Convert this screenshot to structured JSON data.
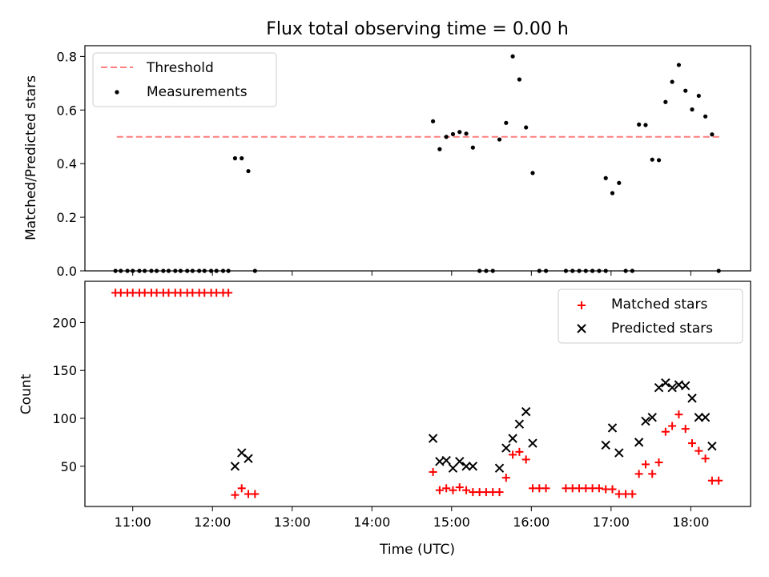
{
  "title": "Flux total observing time = 0.00 h",
  "chart_data": [
    {
      "type": "scatter",
      "ylabel": "Matched/Predicted stars",
      "xlabel": "",
      "xlim": [
        "10:24",
        "18:45"
      ],
      "ylim": [
        0,
        0.84
      ],
      "yticks": [
        0.0,
        0.2,
        0.4,
        0.6,
        0.8
      ],
      "legend_position": "top-left",
      "threshold": {
        "name": "Threshold",
        "value": 0.5,
        "x": [
          "10:48",
          "18:22"
        ],
        "color": "#ff7f7f",
        "style": "dashed"
      },
      "series": [
        {
          "name": "Measurements",
          "marker": "dot",
          "color": "#000000",
          "points": [
            [
              "10:47",
              0
            ],
            [
              "10:51",
              0
            ],
            [
              "10:56",
              0
            ],
            [
              "11:00",
              0
            ],
            [
              "11:05",
              0
            ],
            [
              "11:09",
              0
            ],
            [
              "11:14",
              0
            ],
            [
              "11:18",
              0
            ],
            [
              "11:23",
              0
            ],
            [
              "11:27",
              0
            ],
            [
              "11:32",
              0
            ],
            [
              "11:36",
              0
            ],
            [
              "11:41",
              0
            ],
            [
              "11:45",
              0
            ],
            [
              "11:50",
              0
            ],
            [
              "11:54",
              0
            ],
            [
              "11:59",
              0
            ],
            [
              "12:03",
              0
            ],
            [
              "12:08",
              0
            ],
            [
              "12:12",
              0
            ],
            [
              "12:17",
              0.42
            ],
            [
              "12:22",
              0.42
            ],
            [
              "12:27",
              0.372
            ],
            [
              "12:32",
              0
            ],
            [
              "14:46",
              0.558
            ],
            [
              "14:51",
              0.454
            ],
            [
              "14:56",
              0.5
            ],
            [
              "15:01",
              0.51
            ],
            [
              "15:06",
              0.518
            ],
            [
              "15:11",
              0.512
            ],
            [
              "15:16",
              0.46
            ],
            [
              "15:21",
              0
            ],
            [
              "15:26",
              0
            ],
            [
              "15:31",
              0
            ],
            [
              "15:36",
              0.49
            ],
            [
              "15:41",
              0.552
            ],
            [
              "15:46",
              0.8
            ],
            [
              "15:51",
              0.714
            ],
            [
              "15:56",
              0.535
            ],
            [
              "16:01",
              0.365
            ],
            [
              "16:06",
              0
            ],
            [
              "16:11",
              0
            ],
            [
              "16:26",
              0
            ],
            [
              "16:31",
              0
            ],
            [
              "16:36",
              0
            ],
            [
              "16:41",
              0
            ],
            [
              "16:46",
              0
            ],
            [
              "16:51",
              0
            ],
            [
              "16:56",
              0
            ],
            [
              "16:56",
              0.346
            ],
            [
              "17:01",
              0.29
            ],
            [
              "17:06",
              0.328
            ],
            [
              "17:11",
              0
            ],
            [
              "17:16",
              0
            ],
            [
              "17:21",
              0.546
            ],
            [
              "17:26",
              0.544
            ],
            [
              "17:31",
              0.415
            ],
            [
              "17:36",
              0.413
            ],
            [
              "17:41",
              0.63
            ],
            [
              "17:46",
              0.705
            ],
            [
              "17:51",
              0.768
            ],
            [
              "17:56",
              0.672
            ],
            [
              "18:01",
              0.602
            ],
            [
              "18:06",
              0.653
            ],
            [
              "18:11",
              0.576
            ],
            [
              "18:16",
              0.509
            ],
            [
              "18:21",
              0
            ]
          ]
        }
      ]
    },
    {
      "type": "scatter",
      "xlabel": "Time (UTC)",
      "ylabel": "Count",
      "xlim": [
        "10:24",
        "18:45"
      ],
      "ylim": [
        8,
        243
      ],
      "yticks": [
        50,
        100,
        150,
        200
      ],
      "xticks": [
        "11:00",
        "12:00",
        "13:00",
        "14:00",
        "15:00",
        "16:00",
        "17:00",
        "18:00"
      ],
      "legend_position": "top-right",
      "series": [
        {
          "name": "Matched stars",
          "marker": "plus",
          "color": "#ff0000",
          "points": [
            [
              "10:47",
              231
            ],
            [
              "10:51",
              231
            ],
            [
              "10:56",
              231
            ],
            [
              "11:00",
              231
            ],
            [
              "11:05",
              231
            ],
            [
              "11:09",
              231
            ],
            [
              "11:14",
              231
            ],
            [
              "11:18",
              231
            ],
            [
              "11:23",
              231
            ],
            [
              "11:27",
              231
            ],
            [
              "11:32",
              231
            ],
            [
              "11:36",
              231
            ],
            [
              "11:41",
              231
            ],
            [
              "11:45",
              231
            ],
            [
              "11:50",
              231
            ],
            [
              "11:54",
              231
            ],
            [
              "11:59",
              231
            ],
            [
              "12:03",
              231
            ],
            [
              "12:08",
              231
            ],
            [
              "12:12",
              231
            ],
            [
              "12:17",
              20
            ],
            [
              "12:22",
              27
            ],
            [
              "12:27",
              21
            ],
            [
              "12:32",
              21
            ],
            [
              "14:46",
              44
            ],
            [
              "14:51",
              25
            ],
            [
              "14:56",
              27
            ],
            [
              "15:01",
              25
            ],
            [
              "15:06",
              28
            ],
            [
              "15:11",
              25
            ],
            [
              "15:16",
              23
            ],
            [
              "15:21",
              23
            ],
            [
              "15:26",
              23
            ],
            [
              "15:31",
              23
            ],
            [
              "15:36",
              23
            ],
            [
              "15:41",
              38
            ],
            [
              "15:46",
              62
            ],
            [
              "15:51",
              65
            ],
            [
              "15:56",
              57
            ],
            [
              "16:01",
              27
            ],
            [
              "16:06",
              27
            ],
            [
              "16:11",
              27
            ],
            [
              "16:26",
              27
            ],
            [
              "16:31",
              27
            ],
            [
              "16:36",
              27
            ],
            [
              "16:41",
              27
            ],
            [
              "16:46",
              27
            ],
            [
              "16:51",
              27
            ],
            [
              "16:56",
              26
            ],
            [
              "17:01",
              26
            ],
            [
              "17:06",
              21
            ],
            [
              "17:11",
              21
            ],
            [
              "17:16",
              21
            ],
            [
              "17:21",
              42
            ],
            [
              "17:26",
              52
            ],
            [
              "17:31",
              42
            ],
            [
              "17:36",
              54
            ],
            [
              "17:41",
              86
            ],
            [
              "17:46",
              92
            ],
            [
              "17:51",
              104
            ],
            [
              "17:56",
              89
            ],
            [
              "18:01",
              74
            ],
            [
              "18:06",
              66
            ],
            [
              "18:11",
              58
            ],
            [
              "18:16",
              35
            ],
            [
              "18:21",
              35
            ]
          ]
        },
        {
          "name": "Predicted stars",
          "marker": "x",
          "color": "#000000",
          "points": [
            [
              "12:17",
              50
            ],
            [
              "12:22",
              64
            ],
            [
              "12:27",
              58
            ],
            [
              "14:46",
              79
            ],
            [
              "14:51",
              55
            ],
            [
              "14:56",
              56
            ],
            [
              "15:01",
              48
            ],
            [
              "15:06",
              55
            ],
            [
              "15:11",
              50
            ],
            [
              "15:16",
              50
            ],
            [
              "15:36",
              48
            ],
            [
              "15:41",
              69
            ],
            [
              "15:46",
              79
            ],
            [
              "15:51",
              94
            ],
            [
              "15:56",
              107
            ],
            [
              "16:01",
              74
            ],
            [
              "16:56",
              72
            ],
            [
              "17:01",
              90
            ],
            [
              "17:06",
              64
            ],
            [
              "17:21",
              75
            ],
            [
              "17:26",
              97
            ],
            [
              "17:31",
              101
            ],
            [
              "17:36",
              132
            ],
            [
              "17:41",
              137
            ],
            [
              "17:46",
              132
            ],
            [
              "17:51",
              135
            ],
            [
              "17:56",
              134
            ],
            [
              "18:01",
              121
            ],
            [
              "18:06",
              101
            ],
            [
              "18:11",
              101
            ],
            [
              "18:16",
              71
            ]
          ]
        }
      ]
    }
  ]
}
